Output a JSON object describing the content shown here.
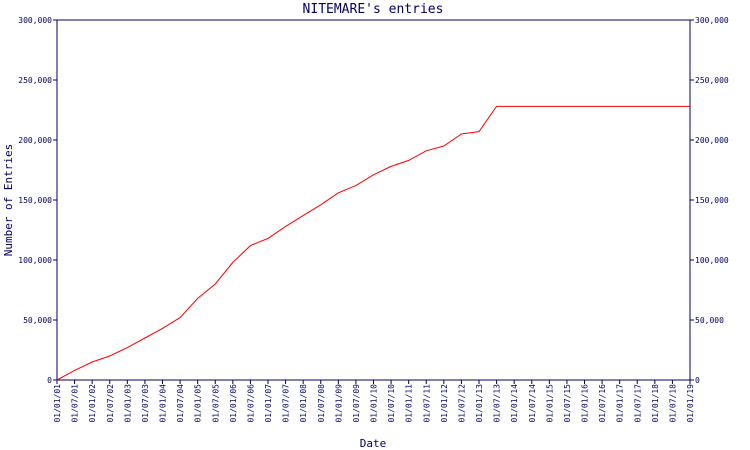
{
  "chart_data": {
    "type": "line",
    "title": "NITEMARE's entries",
    "x_label": "Date",
    "y_label": "Number of Entries",
    "categories": [
      "01/01/01",
      "01/07/01",
      "01/01/02",
      "01/07/02",
      "01/01/03",
      "01/07/03",
      "01/01/04",
      "01/07/04",
      "01/01/05",
      "01/07/05",
      "01/01/06",
      "01/07/06",
      "01/01/07",
      "01/07/07",
      "01/01/08",
      "01/07/08",
      "01/01/09",
      "01/07/09",
      "01/01/10",
      "01/07/10",
      "01/01/11",
      "01/07/11",
      "01/01/12",
      "01/07/12",
      "01/01/13",
      "01/07/13",
      "01/01/14",
      "01/07/14",
      "01/01/15",
      "01/07/15",
      "01/01/16",
      "01/07/16",
      "01/01/17",
      "01/07/17",
      "01/01/18",
      "01/07/18",
      "01/01/19"
    ],
    "series": [
      {
        "name": "NITEMARE",
        "color": "#ff0000",
        "values": [
          0,
          8000,
          15000,
          20000,
          27000,
          35000,
          43000,
          52000,
          68000,
          80000,
          98000,
          112000,
          118000,
          128000,
          137000,
          146000,
          156000,
          162000,
          171000,
          178000,
          183000,
          191000,
          195000,
          205000,
          207000,
          228000,
          228000,
          228000,
          228000,
          228000,
          228000,
          228000,
          228000,
          228000,
          228000,
          228000,
          228000
        ]
      }
    ],
    "ylim": [
      0,
      300000
    ],
    "yticks": [
      0,
      {
        "value": 50000,
        "label": "50,000"
      },
      {
        "value": 100000,
        "label": "100,000"
      },
      {
        "value": 150000,
        "label": "150,000"
      },
      {
        "value": 200000,
        "label": "200,000"
      },
      {
        "value": 250000,
        "label": "250,000"
      },
      {
        "value": 300000,
        "label": "300,000"
      }
    ],
    "axis_color": "#000066"
  }
}
